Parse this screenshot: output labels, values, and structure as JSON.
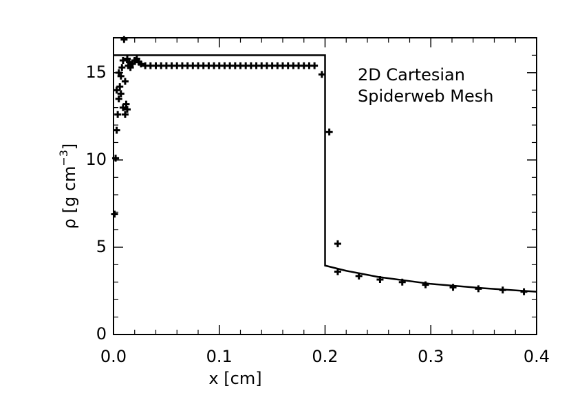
{
  "chart_data": {
    "type": "line",
    "xlabel": "x [cm]",
    "ylabel": {
      "base": "ρ [g cm",
      "sup": "−3",
      "end": "]"
    },
    "annotation": [
      "2D Cartesian",
      "Spiderweb Mesh"
    ],
    "xlim": [
      0,
      0.4
    ],
    "ylim": [
      0,
      17
    ],
    "xticks": [
      {
        "value": 0,
        "label": "0.0"
      },
      0.1,
      0.2,
      0.3,
      0.4
    ],
    "yticks": [
      0,
      5,
      10,
      15
    ],
    "xminorticks": [
      0.02,
      0.04,
      0.06,
      0.08,
      0.12,
      0.14,
      0.16,
      0.18,
      0.22,
      0.24,
      0.26,
      0.28,
      0.32,
      0.34,
      0.36,
      0.38
    ],
    "yminorticks": [
      1,
      2,
      3,
      4,
      6,
      7,
      8,
      9,
      11,
      12,
      13,
      14,
      16
    ],
    "series": [
      {
        "type": "line",
        "color": "#000000",
        "x": [
          0,
          0.2,
          0.2,
          0.22,
          0.25,
          0.3,
          0.35,
          0.4
        ],
        "values": [
          16,
          16,
          3.95,
          3.65,
          3.3,
          2.9,
          2.65,
          2.45
        ]
      },
      {
        "type": "scatter",
        "color": "#000000",
        "x": [
          0.001,
          0.002,
          0.003,
          0.004,
          0.005,
          0.006,
          0.007,
          0.008,
          0.009,
          0.01,
          0.011,
          0.012,
          0.013,
          0.014,
          0.015,
          0.016,
          0.018,
          0.02,
          0.022,
          0.024,
          0.026,
          0.003,
          0.005,
          0.007,
          0.009,
          0.011,
          0.013,
          0.03,
          0.035,
          0.04,
          0.045,
          0.05,
          0.055,
          0.06,
          0.065,
          0.07,
          0.075,
          0.08,
          0.085,
          0.09,
          0.095,
          0.1,
          0.105,
          0.11,
          0.115,
          0.12,
          0.125,
          0.13,
          0.135,
          0.14,
          0.145,
          0.15,
          0.155,
          0.16,
          0.165,
          0.17,
          0.175,
          0.18,
          0.185,
          0.19,
          0.197,
          0.204,
          0.212,
          0.212,
          0.232,
          0.252,
          0.273,
          0.295,
          0.321,
          0.345,
          0.368,
          0.388
        ],
        "values": [
          6.9,
          10.1,
          11.7,
          12.6,
          13.5,
          14.2,
          14.8,
          15.3,
          15.7,
          16.9,
          12.6,
          13.2,
          15.8,
          15.4,
          15.6,
          15.3,
          15.5,
          15.7,
          15.8,
          15.6,
          15.5,
          14.0,
          15.0,
          13.8,
          13.0,
          14.5,
          12.9,
          15.4,
          15.4,
          15.4,
          15.4,
          15.4,
          15.4,
          15.4,
          15.4,
          15.4,
          15.4,
          15.4,
          15.4,
          15.4,
          15.4,
          15.4,
          15.4,
          15.4,
          15.4,
          15.4,
          15.4,
          15.4,
          15.4,
          15.4,
          15.4,
          15.4,
          15.4,
          15.4,
          15.4,
          15.4,
          15.4,
          15.4,
          15.4,
          15.4,
          14.9,
          11.6,
          5.2,
          3.6,
          3.35,
          3.15,
          3.0,
          2.85,
          2.7,
          2.62,
          2.55,
          2.45
        ]
      }
    ]
  }
}
